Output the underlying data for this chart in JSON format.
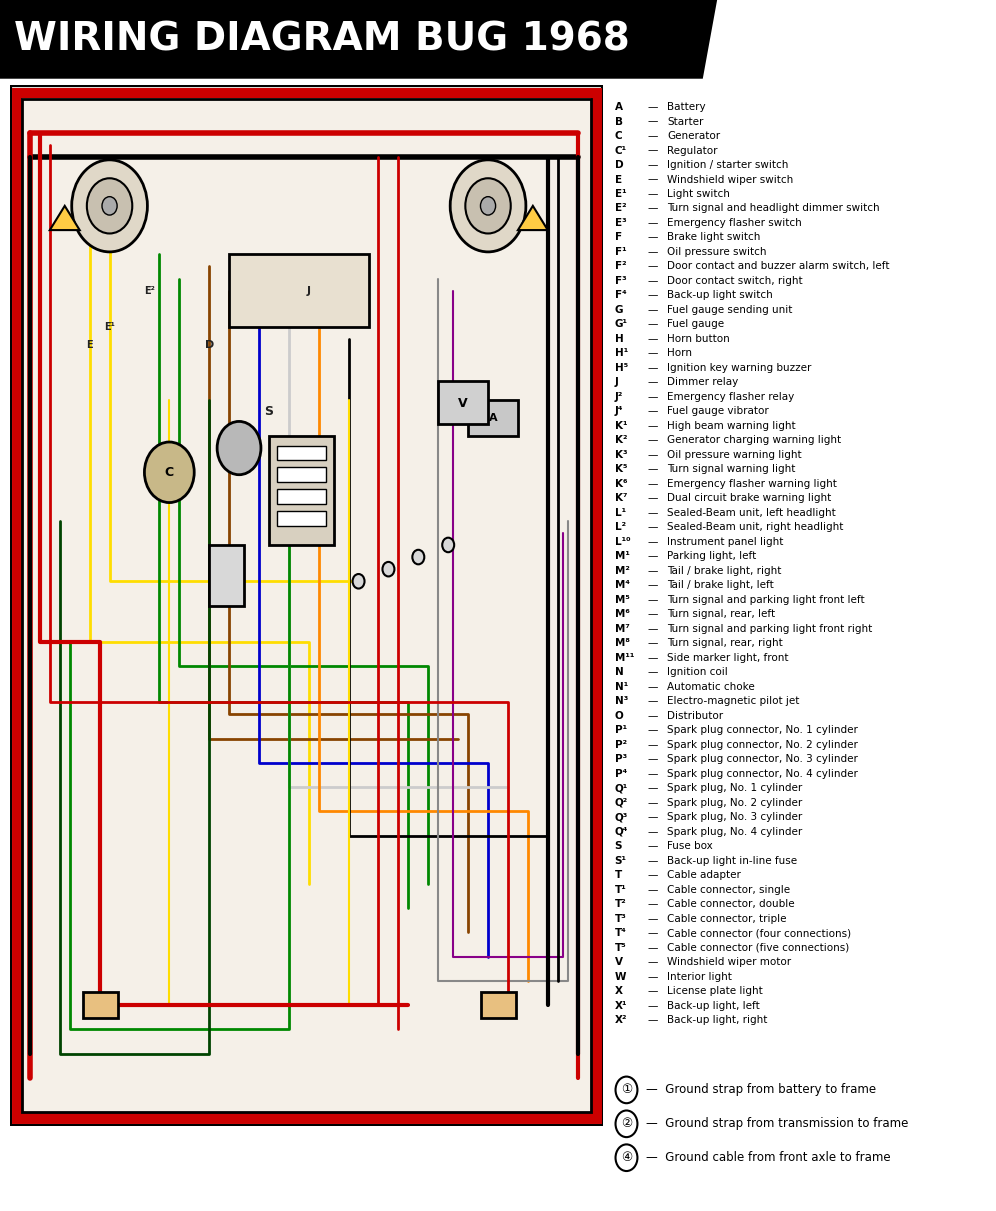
{
  "title": "WIRING DIAGRAM BUG 1968",
  "title_bg": "#000000",
  "title_color": "#ffffff",
  "bg_color": "#ffffff",
  "legend_items": [
    [
      "A",
      "Battery"
    ],
    [
      "B",
      "Starter"
    ],
    [
      "C",
      "Generator"
    ],
    [
      "C¹",
      "Regulator"
    ],
    [
      "D",
      "Ignition / starter switch"
    ],
    [
      "E",
      "Windshield wiper switch"
    ],
    [
      "E¹",
      "Light switch"
    ],
    [
      "E²",
      "Turn signal and headlight dimmer switch"
    ],
    [
      "E³",
      "Emergency flasher switch"
    ],
    [
      "F",
      "Brake light switch"
    ],
    [
      "F¹",
      "Oil pressure switch"
    ],
    [
      "F²",
      "Door contact and buzzer alarm switch, left"
    ],
    [
      "F³",
      "Door contact switch, right"
    ],
    [
      "F⁴",
      "Back-up light switch"
    ],
    [
      "G",
      "Fuel gauge sending unit"
    ],
    [
      "G¹",
      "Fuel gauge"
    ],
    [
      "H",
      "Horn button"
    ],
    [
      "H¹",
      "Horn"
    ],
    [
      "H⁵",
      "Ignition key warning buzzer"
    ],
    [
      "J",
      "Dimmer relay"
    ],
    [
      "J²",
      "Emergency flasher relay"
    ],
    [
      "J⁴",
      "Fuel gauge vibrator"
    ],
    [
      "K¹",
      "High beam warning light"
    ],
    [
      "K²",
      "Generator charging warning light"
    ],
    [
      "K³",
      "Oil pressure warning light"
    ],
    [
      "K⁵",
      "Turn signal warning light"
    ],
    [
      "K⁶",
      "Emergency flasher warning light"
    ],
    [
      "K⁷",
      "Dual circuit brake warning light"
    ],
    [
      "L¹",
      "Sealed-Beam unit, left headlight"
    ],
    [
      "L²",
      "Sealed-Beam unit, right headlight"
    ],
    [
      "L¹⁰",
      "Instrument panel light"
    ],
    [
      "M¹",
      "Parking light, left"
    ],
    [
      "M²",
      "Tail / brake light, right"
    ],
    [
      "M⁴",
      "Tail / brake light, left"
    ],
    [
      "M⁵",
      "Turn signal and parking light front left"
    ],
    [
      "M⁶",
      "Turn signal, rear, left"
    ],
    [
      "M⁷",
      "Turn signal and parking light front right"
    ],
    [
      "M⁸",
      "Turn signal, rear, right"
    ],
    [
      "M¹¹",
      "Side marker light, front"
    ],
    [
      "N",
      "Ignition coil"
    ],
    [
      "N¹",
      "Automatic choke"
    ],
    [
      "N³",
      "Electro-magnetic pilot jet"
    ],
    [
      "O",
      "Distributor"
    ],
    [
      "P¹",
      "Spark plug connector, No. 1 cylinder"
    ],
    [
      "P²",
      "Spark plug connector, No. 2 cylinder"
    ],
    [
      "P³",
      "Spark plug connector, No. 3 cylinder"
    ],
    [
      "P⁴",
      "Spark plug connector, No. 4 cylinder"
    ],
    [
      "Q¹",
      "Spark plug, No. 1 cylinder"
    ],
    [
      "Q²",
      "Spark plug, No. 2 cylinder"
    ],
    [
      "Q³",
      "Spark plug, No. 3 cylinder"
    ],
    [
      "Q⁴",
      "Spark plug, No. 4 cylinder"
    ],
    [
      "S",
      "Fuse box"
    ],
    [
      "S¹",
      "Back-up light in-line fuse"
    ],
    [
      "T",
      "Cable adapter"
    ],
    [
      "T¹",
      "Cable connector, single"
    ],
    [
      "T²",
      "Cable connector, double"
    ],
    [
      "T³",
      "Cable connector, triple"
    ],
    [
      "T⁴",
      "Cable connector (four connections)"
    ],
    [
      "T⁵",
      "Cable connector (five connections)"
    ],
    [
      "V",
      "Windshield wiper motor"
    ],
    [
      "W",
      "Interior light"
    ],
    [
      "X",
      "License plate light"
    ],
    [
      "X¹",
      "Back-up light, left"
    ],
    [
      "X²",
      "Back-up light, right"
    ]
  ],
  "ground_notes": [
    [
      "①",
      "Ground strap from battery to frame"
    ],
    [
      "②",
      "Ground strap from transmission to frame"
    ],
    [
      "④",
      "Ground cable from front axle to frame"
    ]
  ],
  "diagram_bg": "#f5f0e8",
  "border_color": "#cc0000",
  "wire_colors": {
    "black": "#000000",
    "red": "#cc0000",
    "yellow": "#ffdd00",
    "green": "#008800",
    "white": "#ffffff",
    "brown": "#884400",
    "blue": "#0000cc",
    "gray": "#888888",
    "orange": "#ff8800",
    "violet": "#880088"
  }
}
